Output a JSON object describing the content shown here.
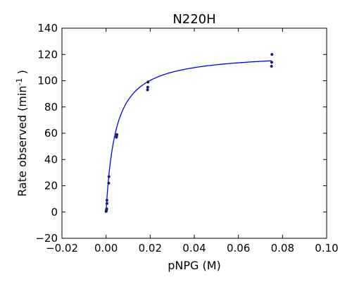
{
  "chart_data": {
    "type": "scatter",
    "title": "N220H",
    "xlabel": "pNPG (M)",
    "ylabel": {
      "main": "Rate observed (min",
      "sup": "-1",
      "end": " )"
    },
    "xlim": [
      -0.02,
      0.1
    ],
    "ylim": [
      -20,
      140
    ],
    "xticks": [
      -0.02,
      0.0,
      0.02,
      0.04,
      0.06,
      0.08,
      0.1
    ],
    "xtick_labels": [
      "−0.02",
      "0.00",
      "0.02",
      "0.04",
      "0.06",
      "0.08",
      "0.10"
    ],
    "yticks": [
      -20,
      0,
      20,
      40,
      60,
      80,
      100,
      120,
      140
    ],
    "ytick_labels": [
      "−20",
      "0",
      "20",
      "40",
      "60",
      "80",
      "100",
      "120",
      "140"
    ],
    "grid": false,
    "series": [
      {
        "name": "observed",
        "kind": "scatter",
        "color": "#1f1f6e",
        "points": [
          [
            0.0,
            0.5
          ],
          [
            0.0001,
            1.0
          ],
          [
            0.0002,
            1.8
          ],
          [
            0.0003,
            2.5
          ],
          [
            0.0004,
            6.5
          ],
          [
            0.0004,
            9.0
          ],
          [
            0.0012,
            22.0
          ],
          [
            0.0013,
            27.0
          ],
          [
            0.0047,
            57.0
          ],
          [
            0.0048,
            58.0
          ],
          [
            0.0049,
            59.0
          ],
          [
            0.0188,
            93.0
          ],
          [
            0.0189,
            95.0
          ],
          [
            0.019,
            99.0
          ],
          [
            0.075,
            111.0
          ],
          [
            0.0751,
            114.0
          ],
          [
            0.0752,
            120.0
          ]
        ]
      },
      {
        "name": "fit",
        "kind": "line",
        "color": "#0000ff",
        "model": "michaelis-menten",
        "vmax": 121.8,
        "km": 0.0043,
        "x_range": [
          0.0,
          0.075
        ]
      }
    ]
  }
}
